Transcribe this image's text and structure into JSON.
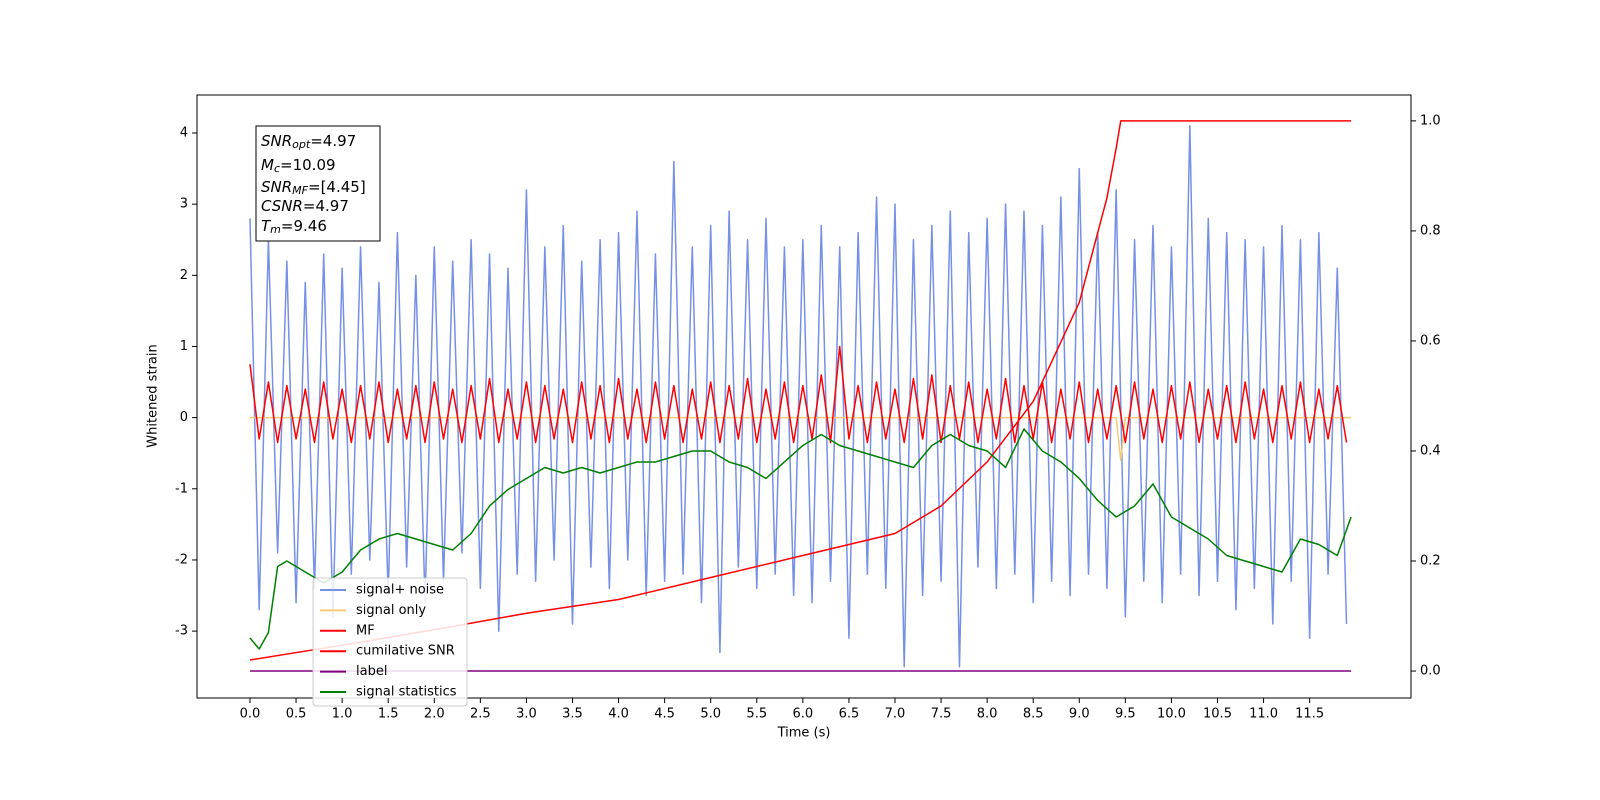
{
  "chart_data": {
    "type": "line",
    "xlabel": "Time (s)",
    "ylabel": "Whitened strain",
    "xlim": [
      -0.575,
      12.6
    ],
    "ylim": [
      -3.94,
      4.534
    ],
    "y2lim": [
      -0.049,
      1.047
    ],
    "xticks": [
      {
        "value": 0,
        "label": "0.0"
      },
      0.5,
      {
        "value": 1,
        "label": "1.0"
      },
      1.5,
      {
        "value": 2,
        "label": "2.0"
      },
      2.5,
      {
        "value": 3,
        "label": "3.0"
      },
      3.5,
      {
        "value": 4,
        "label": "4.0"
      },
      4.5,
      {
        "value": 5,
        "label": "5.0"
      },
      5.5,
      {
        "value": 6,
        "label": "6.0"
      },
      6.5,
      {
        "value": 7,
        "label": "7.0"
      },
      7.5,
      {
        "value": 8,
        "label": "8.0"
      },
      8.5,
      {
        "value": 9,
        "label": "9.0"
      },
      9.5,
      {
        "value": 10,
        "label": "10.0"
      },
      10.5,
      {
        "value": 11,
        "label": "11.0"
      },
      11.5
    ],
    "yticks": [
      -3,
      -2,
      -1,
      0,
      1,
      2,
      3,
      4
    ],
    "y2ticks": [
      {
        "value": 0,
        "label": "0.0"
      },
      0.2,
      0.4,
      0.6,
      0.8,
      {
        "value": 1,
        "label": "1.0"
      }
    ],
    "x": [
      0.0,
      0.1,
      0.2,
      0.3,
      0.4,
      0.5,
      0.6,
      0.7,
      0.8,
      0.9,
      1.0,
      1.1,
      1.2,
      1.3,
      1.4,
      1.5,
      1.6,
      1.7,
      1.8,
      1.9,
      2.0,
      2.1,
      2.2,
      2.3,
      2.4,
      2.5,
      2.6,
      2.7,
      2.8,
      2.9,
      3.0,
      3.1,
      3.2,
      3.3,
      3.4,
      3.5,
      3.6,
      3.7,
      3.8,
      3.9,
      4.0,
      4.1,
      4.2,
      4.3,
      4.4,
      4.5,
      4.6,
      4.7,
      4.8,
      4.9,
      5.0,
      5.1,
      5.2,
      5.3,
      5.4,
      5.5,
      5.6,
      5.7,
      5.8,
      5.9,
      6.0,
      6.1,
      6.2,
      6.3,
      6.4,
      6.5,
      6.6,
      6.7,
      6.8,
      6.9,
      7.0,
      7.1,
      7.2,
      7.3,
      7.4,
      7.5,
      7.6,
      7.7,
      7.8,
      7.9,
      8.0,
      8.1,
      8.2,
      8.3,
      8.4,
      8.5,
      8.6,
      8.7,
      8.8,
      8.9,
      9.0,
      9.1,
      9.2,
      9.3,
      9.4,
      9.5,
      9.6,
      9.7,
      9.8,
      9.9,
      10.0,
      10.1,
      10.2,
      10.3,
      10.4,
      10.5,
      10.6,
      10.7,
      10.8,
      10.9,
      11.0,
      11.1,
      11.2,
      11.3,
      11.4,
      11.5,
      11.6,
      11.7,
      11.8,
      11.9
    ],
    "series": [
      {
        "name": "signal+ noise",
        "color": "#7590e6",
        "values": [
          2.8,
          -2.7,
          2.5,
          -1.9,
          2.2,
          -2.6,
          1.9,
          -2.4,
          2.3,
          -2.8,
          2.1,
          -2.2,
          2.4,
          -2.0,
          1.9,
          -2.5,
          2.6,
          -2.1,
          2.0,
          -2.6,
          2.4,
          -2.3,
          2.2,
          -1.9,
          2.5,
          -2.4,
          2.3,
          -3.0,
          2.1,
          -2.2,
          3.2,
          -2.3,
          2.4,
          -2.0,
          2.7,
          -2.9,
          2.2,
          -2.1,
          2.5,
          -2.4,
          2.6,
          -2.0,
          2.9,
          -2.5,
          2.3,
          -2.3,
          3.6,
          -2.2,
          2.4,
          -2.6,
          2.7,
          -3.3,
          2.9,
          -2.1,
          2.5,
          -2.4,
          2.8,
          -2.2,
          2.4,
          -2.5,
          2.5,
          -2.6,
          2.7,
          -2.3,
          2.4,
          -3.1,
          2.6,
          -2.2,
          3.1,
          -2.4,
          3.0,
          -3.5,
          2.5,
          -2.5,
          2.7,
          -2.3,
          2.9,
          -3.5,
          2.6,
          -2.1,
          2.8,
          -2.4,
          3.0,
          -2.2,
          2.9,
          -2.6,
          2.7,
          -2.3,
          3.1,
          -2.5,
          3.5,
          -2.2,
          2.6,
          -2.4,
          3.2,
          -2.8,
          2.5,
          -2.3,
          2.7,
          -2.6,
          2.4,
          -2.2,
          4.1,
          -2.5,
          2.8,
          -2.3,
          2.6,
          -2.7,
          2.5,
          -2.4,
          2.4,
          -2.9,
          2.7,
          -2.3,
          2.5,
          -3.1,
          2.6,
          -2.2,
          2.1,
          -2.9
        ]
      },
      {
        "name": "signal only",
        "color": "#f5c97a",
        "x": [
          0.0,
          9.4,
          9.45,
          9.5,
          11.95
        ],
        "values": [
          0,
          0,
          -0.6,
          0,
          0
        ]
      },
      {
        "name": "MF",
        "color": "#ff0000",
        "values": [
          0.75,
          -0.3,
          0.5,
          -0.35,
          0.45,
          -0.3,
          0.4,
          -0.35,
          0.5,
          -0.3,
          0.4,
          -0.35,
          0.45,
          -0.3,
          0.5,
          -0.35,
          0.4,
          -0.3,
          0.45,
          -0.35,
          0.5,
          -0.3,
          0.4,
          -0.35,
          0.45,
          -0.3,
          0.55,
          -0.35,
          0.4,
          -0.3,
          0.5,
          -0.35,
          0.45,
          -0.3,
          0.4,
          -0.35,
          0.5,
          -0.3,
          0.45,
          -0.35,
          0.55,
          -0.3,
          0.4,
          -0.35,
          0.5,
          -0.3,
          0.45,
          -0.35,
          0.4,
          -0.3,
          0.5,
          -0.35,
          0.45,
          -0.3,
          0.55,
          -0.35,
          0.4,
          -0.3,
          0.5,
          -0.35,
          0.45,
          -0.3,
          0.6,
          -0.35,
          1.0,
          -0.3,
          0.45,
          -0.35,
          0.5,
          -0.3,
          0.4,
          -0.35,
          0.55,
          -0.3,
          0.6,
          -0.35,
          0.45,
          -0.3,
          0.5,
          -0.35,
          0.4,
          -0.3,
          0.55,
          -0.35,
          0.45,
          -0.3,
          0.5,
          -0.35,
          0.4,
          -0.3,
          0.5,
          -0.35,
          0.4,
          -0.3,
          0.45,
          -0.35,
          0.5,
          -0.3,
          0.4,
          -0.35,
          0.45,
          -0.3,
          0.5,
          -0.35,
          0.4,
          -0.3,
          0.45,
          -0.35,
          0.5,
          -0.3,
          0.4,
          -0.35,
          0.45,
          -0.3,
          0.5,
          -0.35,
          0.4,
          -0.3,
          0.45,
          -0.35
        ]
      },
      {
        "name": "cumilative SNR",
        "color": "#ff0000",
        "axis": "y2",
        "x": [
          0.0,
          1.0,
          2.0,
          3.0,
          4.0,
          5.0,
          6.0,
          7.0,
          7.5,
          8.0,
          8.5,
          9.0,
          9.3,
          9.4,
          9.45,
          11.95
        ],
        "values": [
          0.02,
          0.047,
          0.075,
          0.105,
          0.13,
          0.17,
          0.21,
          0.25,
          0.3,
          0.38,
          0.49,
          0.67,
          0.86,
          0.95,
          1.0,
          1.0
        ]
      },
      {
        "name": "label",
        "color": "#800080",
        "axis": "y2",
        "x": [
          0.0,
          11.95
        ],
        "values": [
          0,
          0
        ]
      },
      {
        "name": "signal statistics",
        "color": "#008000",
        "axis": "y2",
        "x": [
          0.0,
          0.1,
          0.2,
          0.3,
          0.4,
          0.6,
          0.8,
          1.0,
          1.2,
          1.4,
          1.6,
          1.8,
          2.0,
          2.2,
          2.4,
          2.6,
          2.8,
          3.0,
          3.2,
          3.4,
          3.6,
          3.8,
          4.0,
          4.2,
          4.4,
          4.6,
          4.8,
          5.0,
          5.2,
          5.4,
          5.6,
          5.8,
          6.0,
          6.2,
          6.4,
          6.6,
          6.8,
          7.0,
          7.2,
          7.4,
          7.6,
          7.8,
          8.0,
          8.2,
          8.4,
          8.6,
          8.8,
          9.0,
          9.2,
          9.4,
          9.6,
          9.8,
          10.0,
          10.2,
          10.4,
          10.6,
          10.8,
          11.0,
          11.2,
          11.4,
          11.6,
          11.8,
          11.95
        ],
        "values": [
          0.06,
          0.04,
          0.07,
          0.19,
          0.2,
          0.18,
          0.16,
          0.18,
          0.22,
          0.24,
          0.25,
          0.24,
          0.23,
          0.22,
          0.25,
          0.3,
          0.33,
          0.35,
          0.37,
          0.36,
          0.37,
          0.36,
          0.37,
          0.38,
          0.38,
          0.39,
          0.4,
          0.4,
          0.38,
          0.37,
          0.35,
          0.38,
          0.41,
          0.43,
          0.41,
          0.4,
          0.39,
          0.38,
          0.37,
          0.41,
          0.43,
          0.41,
          0.4,
          0.37,
          0.44,
          0.4,
          0.38,
          0.35,
          0.31,
          0.28,
          0.3,
          0.34,
          0.28,
          0.26,
          0.24,
          0.21,
          0.2,
          0.19,
          0.18,
          0.24,
          0.23,
          0.21,
          0.28
        ]
      }
    ],
    "annotation": [
      {
        "main": "SNR",
        "sub": "opt",
        "rest": "=4.97"
      },
      {
        "main": "M",
        "sub": "c",
        "rest": "=10.09"
      },
      {
        "main": "SNR",
        "sub": "MF",
        "rest": "=[4.45]"
      },
      {
        "main": "CSNR",
        "rest": "=4.97"
      },
      {
        "main": "T",
        "sub": "m",
        "rest": "=9.46"
      }
    ]
  }
}
